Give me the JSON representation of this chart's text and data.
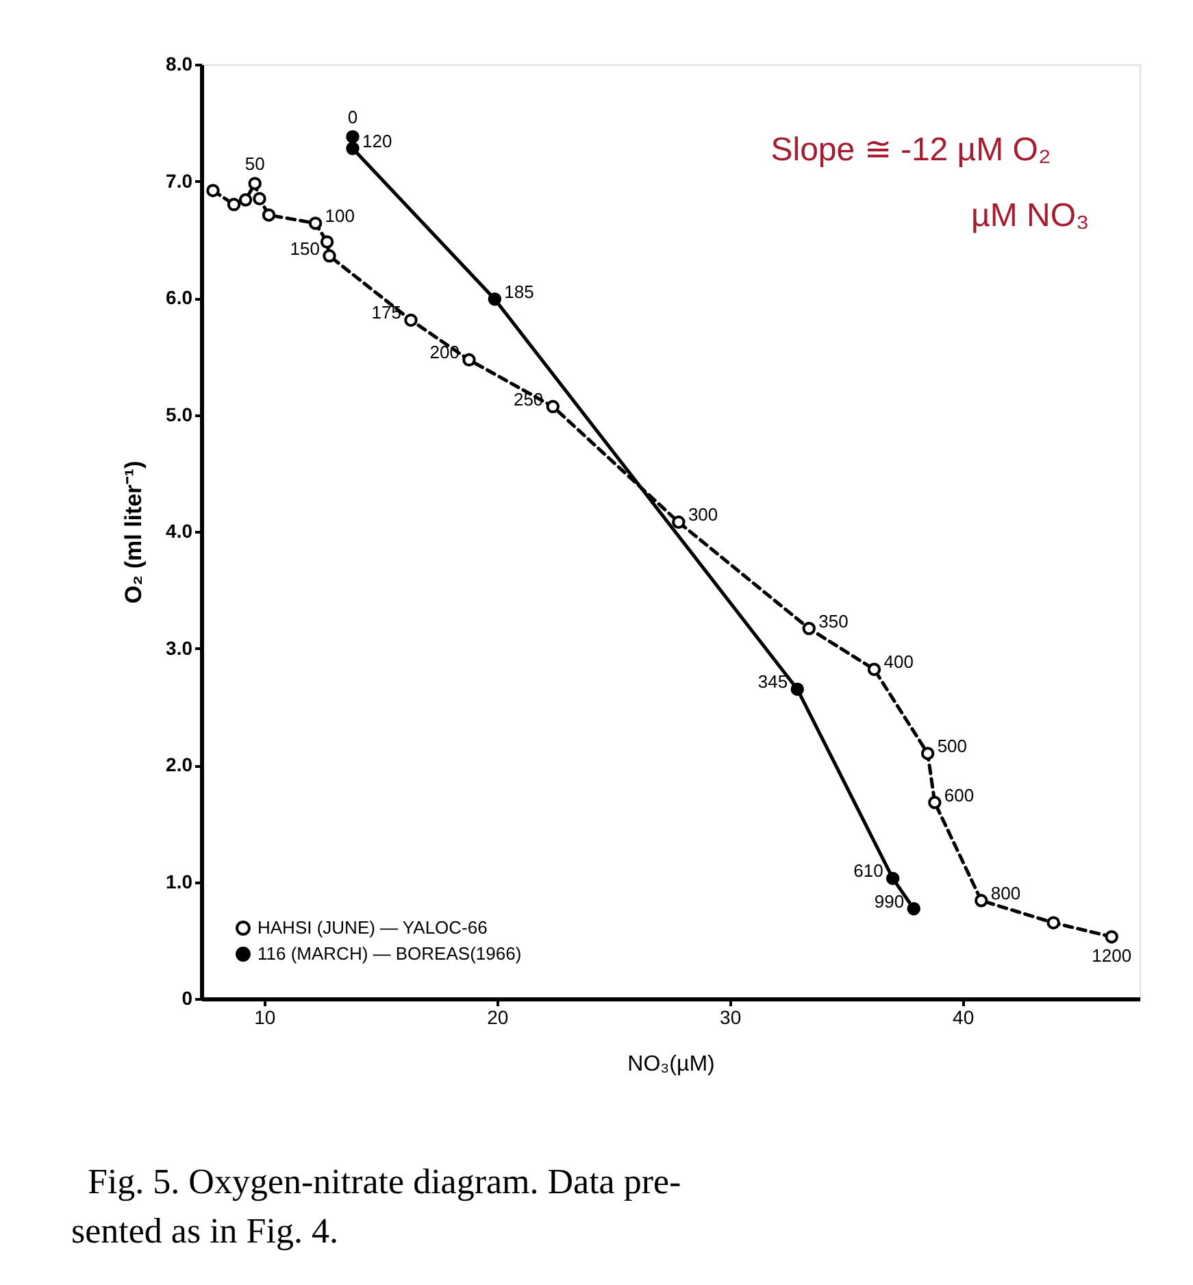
{
  "chart_data": {
    "type": "line",
    "xlabel": "NO₃(µM)",
    "ylabel": "O₂ (ml liter⁻¹)",
    "xlim": [
      7.3,
      47.6
    ],
    "ylim": [
      0,
      8
    ],
    "xticks": [
      10,
      20,
      30,
      40
    ],
    "yticks": [
      0,
      {
        "value": 1,
        "label": "1.0"
      },
      {
        "value": 2,
        "label": "2.0"
      },
      {
        "value": 3,
        "label": "3.0"
      },
      {
        "value": 4,
        "label": "4.0"
      },
      {
        "value": 5,
        "label": "5.0"
      },
      {
        "value": 6,
        "label": "6.0"
      },
      {
        "value": 7,
        "label": "7.0"
      },
      {
        "value": 8,
        "label": "8.0"
      }
    ],
    "legend": "bottom left",
    "marker": "circle",
    "series": [
      {
        "name": "HAHSI (JUNE) — YALOC-66",
        "color": "#000000",
        "line_style": "dashed",
        "x": [
          7.8,
          8.7,
          9.2,
          9.6,
          9.8,
          10.2,
          12.2,
          12.7,
          12.8,
          16.3,
          18.8,
          22.4,
          27.8,
          33.4,
          36.2,
          38.5,
          38.8,
          40.8,
          43.9,
          46.4
        ],
        "values": [
          6.92,
          6.8,
          6.84,
          6.98,
          6.85,
          6.71,
          6.64,
          6.48,
          6.36,
          5.81,
          5.47,
          5.07,
          4.08,
          3.17,
          2.82,
          2.1,
          1.68,
          0.84,
          0.65,
          0.53
        ]
      },
      {
        "name": "116 (MARCH) — BOREAS(1966)",
        "color": "#000000",
        "line_style": "solid",
        "x": [
          13.8,
          13.8,
          19.9,
          32.9,
          37.0,
          37.9
        ],
        "values": [
          7.38,
          7.28,
          5.99,
          2.65,
          1.03,
          0.77
        ]
      }
    ],
    "annotations": [
      {
        "text": "50",
        "x": 9.6,
        "y": 6.98
      },
      {
        "text": "100",
        "x": 12.2,
        "y": 6.64
      },
      {
        "text": "150",
        "x": 12.8,
        "y": 6.36
      },
      {
        "text": "175",
        "x": 16.3,
        "y": 5.81
      },
      {
        "text": "200",
        "x": 18.8,
        "y": 5.47
      },
      {
        "text": "250",
        "x": 22.4,
        "y": 5.07
      },
      {
        "text": "300",
        "x": 27.8,
        "y": 4.08
      },
      {
        "text": "350",
        "x": 33.4,
        "y": 3.17
      },
      {
        "text": "400",
        "x": 36.2,
        "y": 2.82
      },
      {
        "text": "500",
        "x": 38.5,
        "y": 2.1
      },
      {
        "text": "600",
        "x": 38.8,
        "y": 1.68
      },
      {
        "text": "800",
        "x": 40.8,
        "y": 0.84
      },
      {
        "text": "1200",
        "x": 46.4,
        "y": 0.53
      },
      {
        "text": "0",
        "x": 13.8,
        "y": 7.38
      },
      {
        "text": "120",
        "x": 13.8,
        "y": 7.28
      },
      {
        "text": "185",
        "x": 19.9,
        "y": 5.99
      },
      {
        "text": "345",
        "x": 32.9,
        "y": 2.65
      },
      {
        "text": "610",
        "x": 37.0,
        "y": 1.03
      },
      {
        "text": "990",
        "x": 37.9,
        "y": 0.77
      },
      "Slope ≅ -12 µM O₂",
      "µM NO₃",
      "Fig. 5. Oxygen-nitrate diagram. Data pre-",
      "sented as in Fig. 4."
    ]
  }
}
